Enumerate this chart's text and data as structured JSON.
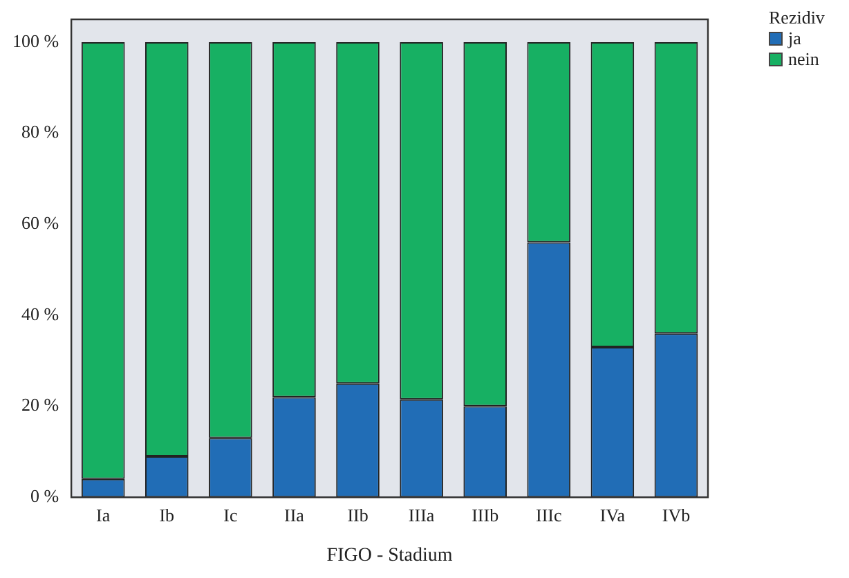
{
  "chart_data": {
    "type": "bar",
    "stacked": true,
    "xlabel": "FIGO - Stadium",
    "legend_title": "Rezidiv",
    "legend": "top right",
    "grid": false,
    "categories": [
      "Ia",
      "Ib",
      "Ic",
      "IIa",
      "IIb",
      "IIIa",
      "IIIb",
      "IIIc",
      "IVa",
      "IVb"
    ],
    "series": [
      {
        "name": "ja",
        "color": "#216db6",
        "values": [
          4,
          9,
          13,
          22,
          25,
          21.5,
          20,
          56,
          33,
          36
        ]
      },
      {
        "name": "nein",
        "color": "#17b063",
        "values": [
          96,
          91,
          87,
          78,
          75,
          78.5,
          80,
          44,
          67,
          64
        ]
      }
    ],
    "ylim": [
      0,
      105
    ],
    "yticks": [
      {
        "value": 0,
        "label": "0 %"
      },
      {
        "value": 20,
        "label": "20 %"
      },
      {
        "value": 40,
        "label": "40 %"
      },
      {
        "value": 60,
        "label": "60 %"
      },
      {
        "value": 80,
        "label": "80 %"
      },
      {
        "value": 100,
        "label": "100 %"
      }
    ]
  }
}
